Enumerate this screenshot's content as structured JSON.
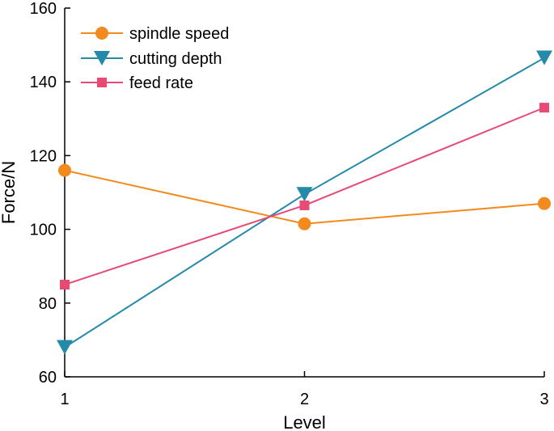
{
  "chart_data": {
    "type": "line",
    "title": "",
    "xlabel": "Level",
    "ylabel": "Force/N",
    "x": [
      1,
      2,
      3
    ],
    "xticks": [
      "1",
      "2",
      "3"
    ],
    "xlim": [
      1,
      3
    ],
    "ylim": [
      60,
      160
    ],
    "yticks": [
      "60",
      "80",
      "100",
      "120",
      "140",
      "160"
    ],
    "grid": false,
    "legend_position": "top-left",
    "series": [
      {
        "name": "spindle speed",
        "values": [
          116,
          101.5,
          107
        ],
        "color": "#F28A1E",
        "marker": "circle"
      },
      {
        "name": "cutting depth",
        "values": [
          68,
          109.5,
          146.5
        ],
        "color": "#2589A8",
        "marker": "triangle-down"
      },
      {
        "name": "feed rate",
        "values": [
          85,
          106.5,
          133
        ],
        "color": "#E84A76",
        "marker": "square"
      }
    ]
  }
}
